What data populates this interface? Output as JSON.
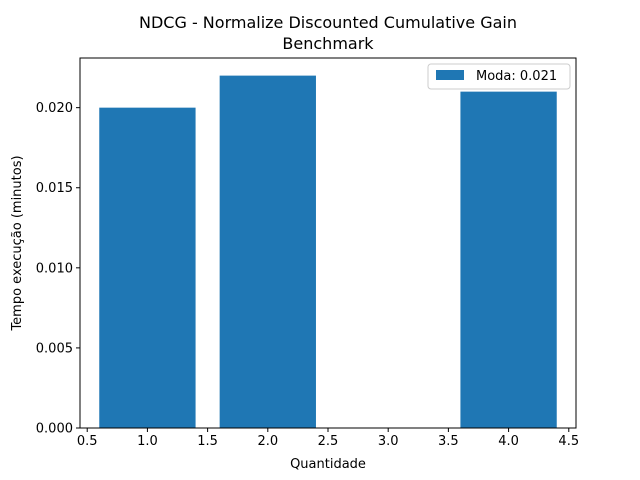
{
  "chart_data": {
    "type": "bar",
    "title": "NDCG - Normalize Discounted Cumulative Gain",
    "subtitle": "Benchmark",
    "xlabel": "Quantidade",
    "ylabel": "Tempo execução (minutos)",
    "x": [
      1.0,
      2.0,
      4.0
    ],
    "values": [
      0.02,
      0.022,
      0.021
    ],
    "bar_width": 0.8,
    "xlim": [
      0.44,
      4.56
    ],
    "ylim": [
      0.0,
      0.0231
    ],
    "xticks": [
      0.5,
      1.0,
      1.5,
      2.0,
      2.5,
      3.0,
      3.5,
      4.0,
      4.5
    ],
    "xtick_labels": [
      "0.5",
      "1.0",
      "1.5",
      "2.0",
      "2.5",
      "3.0",
      "3.5",
      "4.0",
      "4.5"
    ],
    "yticks": [
      0.0,
      0.005,
      0.01,
      0.015,
      0.02
    ],
    "ytick_labels": [
      "0.000",
      "0.005",
      "0.010",
      "0.015",
      "0.020"
    ],
    "legend": {
      "label": "Moda: 0.021",
      "placement": "top-right"
    },
    "grid": false,
    "bar_color": "#1f77b4"
  }
}
